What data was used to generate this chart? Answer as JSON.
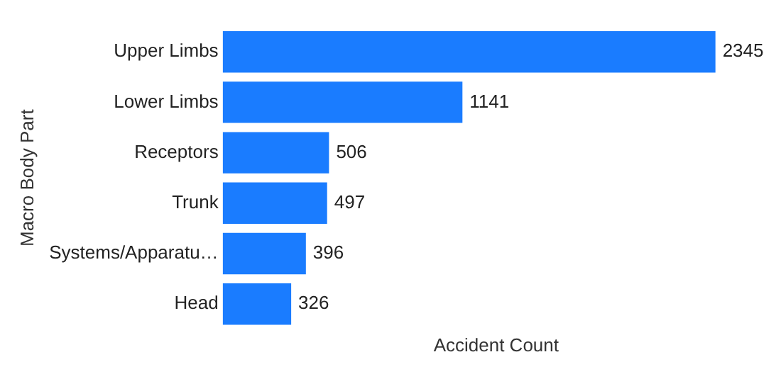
{
  "chart_data": {
    "type": "bar",
    "orientation": "horizontal",
    "xlabel": "Accident Count",
    "ylabel": "Macro Body Part",
    "categories": [
      "Upper Limbs",
      "Lower Limbs",
      "Receptors",
      "Trunk",
      "Systems/Apparatu…",
      "Head"
    ],
    "values": [
      2345,
      1141,
      506,
      497,
      396,
      326
    ],
    "color": "#1a7cff",
    "data_labels": true,
    "legend": false,
    "grid": false,
    "tick_labels": "y"
  }
}
